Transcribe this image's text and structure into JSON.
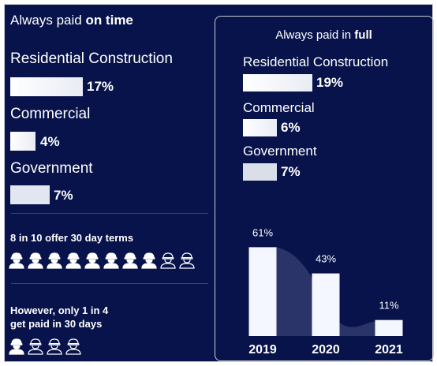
{
  "left": {
    "title_prefix": "Always paid ",
    "title_bold": "on time",
    "rows": [
      {
        "label": "Residential Construction",
        "value": "17%",
        "fraction": 0.17
      },
      {
        "label": "Commercial",
        "value": "4%",
        "fraction": 0.04
      },
      {
        "label": "Government",
        "value": "7%",
        "fraction": 0.07
      }
    ],
    "terms_text": "8 in 10 offer 30 day terms",
    "terms_people": {
      "filled": 8,
      "total": 10
    },
    "paid_line1": "However, only 1 in 4",
    "paid_line2": "get paid in 30 days",
    "paid_people": {
      "filled": 1,
      "total": 4
    }
  },
  "right": {
    "title_prefix": "Always paid in ",
    "title_bold": "full",
    "rows": [
      {
        "label": "Residential Construction",
        "value": "19%",
        "fraction": 0.19
      },
      {
        "label": "Commercial",
        "value": "6%",
        "fraction": 0.06
      },
      {
        "label": "Government",
        "value": "7%",
        "fraction": 0.07
      }
    ]
  },
  "chart_data": {
    "type": "bar",
    "categories": [
      "2019",
      "2020",
      "2021"
    ],
    "values": [
      61,
      43,
      11
    ],
    "value_labels": [
      "61%",
      "43%",
      "11%"
    ],
    "ylim": [
      0,
      65
    ]
  },
  "colors": {
    "background": "#07134a",
    "bar": "#f4f7ff",
    "area": "#2a3468"
  },
  "icons": {
    "person": "hard-hat-worker-icon"
  }
}
